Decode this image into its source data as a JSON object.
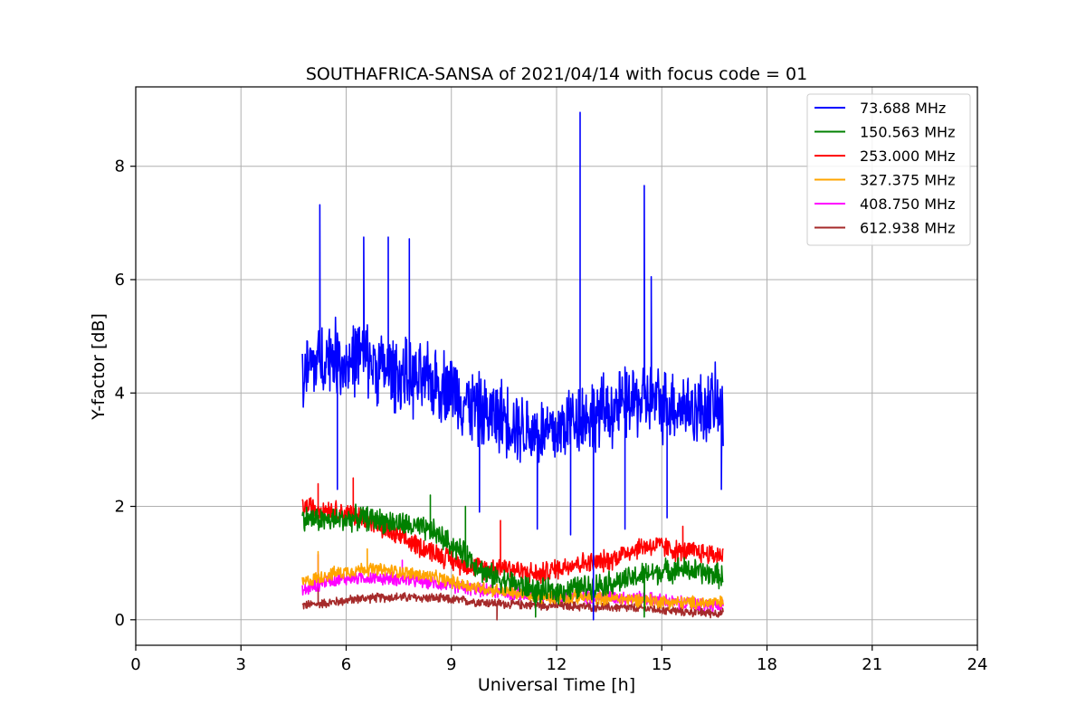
{
  "chart_data": {
    "type": "line",
    "title": "SOUTHAFRICA-SANSA of 2021/04/14 with focus code = 01",
    "xlabel": "Universal Time [h]",
    "ylabel": "Y-factor [dB]",
    "xlim": [
      0,
      24
    ],
    "ylim": [
      -0.45,
      9.4
    ],
    "xticks": [
      0,
      3,
      6,
      9,
      12,
      15,
      18,
      21,
      24
    ],
    "yticks": [
      0,
      2,
      4,
      6,
      8
    ],
    "grid": true,
    "legend_position": "top-right",
    "series": [
      {
        "name": " 73.688 MHz",
        "color": "#0000ff",
        "points": [
          [
            4.75,
            4.2
          ],
          [
            5.0,
            4.5
          ],
          [
            5.3,
            4.6
          ],
          [
            5.6,
            4.7
          ],
          [
            6.0,
            4.5
          ],
          [
            6.4,
            4.7
          ],
          [
            6.8,
            4.5
          ],
          [
            7.2,
            4.4
          ],
          [
            7.6,
            4.3
          ],
          [
            8.0,
            4.2
          ],
          [
            8.5,
            4.2
          ],
          [
            9.0,
            4.1
          ],
          [
            9.5,
            3.8
          ],
          [
            10.0,
            3.6
          ],
          [
            10.5,
            3.6
          ],
          [
            11.0,
            3.4
          ],
          [
            11.5,
            3.3
          ],
          [
            12.0,
            3.3
          ],
          [
            12.5,
            3.6
          ],
          [
            13.0,
            3.6
          ],
          [
            13.5,
            3.7
          ],
          [
            14.0,
            3.8
          ],
          [
            14.5,
            3.9
          ],
          [
            15.0,
            3.8
          ],
          [
            15.5,
            3.8
          ],
          [
            16.0,
            3.7
          ],
          [
            16.5,
            3.8
          ],
          [
            16.75,
            3.6
          ]
        ],
        "spikes": [
          [
            5.25,
            7.32
          ],
          [
            5.75,
            2.3
          ],
          [
            6.5,
            6.75
          ],
          [
            7.2,
            6.75
          ],
          [
            7.8,
            6.72
          ],
          [
            9.8,
            1.9
          ],
          [
            11.45,
            1.6
          ],
          [
            12.4,
            1.5
          ],
          [
            12.67,
            8.95
          ],
          [
            13.05,
            0.0
          ],
          [
            13.95,
            1.6
          ],
          [
            14.5,
            7.66
          ],
          [
            14.7,
            6.05
          ],
          [
            15.15,
            1.8
          ],
          [
            16.7,
            2.3
          ]
        ]
      },
      {
        "name": "150.563 MHz",
        "color": "#008000",
        "points": [
          [
            4.75,
            1.8
          ],
          [
            5.5,
            1.75
          ],
          [
            6.5,
            1.8
          ],
          [
            7.5,
            1.7
          ],
          [
            8.5,
            1.55
          ],
          [
            9.5,
            1.1
          ],
          [
            10.0,
            0.8
          ],
          [
            10.5,
            0.7
          ],
          [
            11.0,
            0.6
          ],
          [
            11.5,
            0.5
          ],
          [
            12.0,
            0.5
          ],
          [
            12.5,
            0.55
          ],
          [
            13.0,
            0.6
          ],
          [
            13.5,
            0.65
          ],
          [
            14.0,
            0.7
          ],
          [
            14.5,
            0.8
          ],
          [
            15.0,
            0.85
          ],
          [
            15.5,
            0.9
          ],
          [
            16.0,
            0.85
          ],
          [
            16.5,
            0.8
          ],
          [
            16.75,
            0.75
          ]
        ],
        "spikes": [
          [
            8.4,
            2.2
          ],
          [
            9.4,
            2.0
          ],
          [
            11.4,
            0.05
          ],
          [
            14.5,
            0.05
          ]
        ]
      },
      {
        "name": "253.000 MHz",
        "color": "#ff0000",
        "points": [
          [
            4.75,
            2.0
          ],
          [
            5.5,
            1.95
          ],
          [
            6.5,
            1.8
          ],
          [
            7.5,
            1.45
          ],
          [
            8.5,
            1.2
          ],
          [
            9.0,
            1.05
          ],
          [
            9.5,
            0.95
          ],
          [
            10.0,
            0.9
          ],
          [
            10.5,
            0.95
          ],
          [
            11.0,
            0.85
          ],
          [
            11.5,
            0.8
          ],
          [
            12.0,
            0.9
          ],
          [
            12.5,
            1.0
          ],
          [
            13.0,
            1.0
          ],
          [
            13.5,
            1.05
          ],
          [
            14.0,
            1.2
          ],
          [
            14.5,
            1.3
          ],
          [
            15.0,
            1.3
          ],
          [
            15.5,
            1.2
          ],
          [
            16.0,
            1.2
          ],
          [
            16.5,
            1.15
          ],
          [
            16.75,
            1.15
          ]
        ],
        "spikes": [
          [
            5.2,
            2.4
          ],
          [
            6.2,
            2.5
          ],
          [
            10.4,
            1.75
          ],
          [
            15.6,
            1.65
          ]
        ]
      },
      {
        "name": "327.375 MHz",
        "color": "#ffa500",
        "points": [
          [
            4.75,
            0.65
          ],
          [
            5.5,
            0.8
          ],
          [
            6.5,
            0.9
          ],
          [
            7.5,
            0.85
          ],
          [
            8.5,
            0.75
          ],
          [
            9.5,
            0.6
          ],
          [
            10.5,
            0.5
          ],
          [
            11.5,
            0.4
          ],
          [
            12.5,
            0.4
          ],
          [
            13.5,
            0.38
          ],
          [
            14.5,
            0.35
          ],
          [
            15.5,
            0.3
          ],
          [
            16.5,
            0.3
          ],
          [
            16.75,
            0.3
          ]
        ],
        "spikes": [
          [
            5.2,
            1.2
          ],
          [
            6.6,
            1.25
          ]
        ]
      },
      {
        "name": "408.750 MHz",
        "color": "#ff00ff",
        "points": [
          [
            4.75,
            0.5
          ],
          [
            5.5,
            0.7
          ],
          [
            6.5,
            0.75
          ],
          [
            7.5,
            0.72
          ],
          [
            8.5,
            0.65
          ],
          [
            9.5,
            0.55
          ],
          [
            10.5,
            0.48
          ],
          [
            11.5,
            0.42
          ],
          [
            12.5,
            0.42
          ],
          [
            13.5,
            0.4
          ],
          [
            14.5,
            0.38
          ],
          [
            15.5,
            0.3
          ],
          [
            16.5,
            0.25
          ],
          [
            16.75,
            0.25
          ]
        ],
        "spikes": [
          [
            5.2,
            1.15
          ],
          [
            7.6,
            1.05
          ]
        ]
      },
      {
        "name": "612.938 MHz",
        "color": "#a52a2a",
        "points": [
          [
            4.75,
            0.25
          ],
          [
            5.5,
            0.3
          ],
          [
            6.5,
            0.38
          ],
          [
            7.5,
            0.4
          ],
          [
            8.5,
            0.38
          ],
          [
            9.5,
            0.33
          ],
          [
            10.5,
            0.28
          ],
          [
            11.5,
            0.26
          ],
          [
            12.5,
            0.24
          ],
          [
            13.5,
            0.22
          ],
          [
            14.5,
            0.2
          ],
          [
            15.5,
            0.15
          ],
          [
            16.5,
            0.12
          ],
          [
            16.75,
            0.12
          ]
        ],
        "spikes": [
          [
            5.2,
            0.6
          ],
          [
            10.3,
            0.0
          ]
        ]
      }
    ]
  }
}
